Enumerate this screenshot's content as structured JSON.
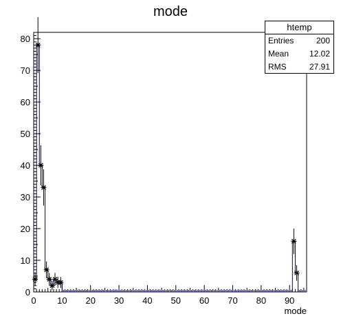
{
  "chart_data": {
    "type": "histogram",
    "title": "mode",
    "xlabel": "mode",
    "ylabel": "",
    "xlim": [
      0,
      96
    ],
    "ylim": [
      0,
      82
    ],
    "x_ticks": [
      0,
      10,
      20,
      30,
      40,
      50,
      60,
      70,
      80,
      90
    ],
    "y_ticks": [
      0,
      10,
      20,
      30,
      40,
      50,
      60,
      70,
      80
    ],
    "bin_width": 1,
    "bins": [
      {
        "x": 0,
        "value": 4
      },
      {
        "x": 1,
        "value": 78
      },
      {
        "x": 2,
        "value": 40
      },
      {
        "x": 3,
        "value": 33
      },
      {
        "x": 4,
        "value": 7
      },
      {
        "x": 5,
        "value": 4
      },
      {
        "x": 6,
        "value": 2
      },
      {
        "x": 7,
        "value": 4
      },
      {
        "x": 8,
        "value": 3
      },
      {
        "x": 9,
        "value": 3
      },
      {
        "x": 91,
        "value": 16
      },
      {
        "x": 92,
        "value": 6
      }
    ],
    "line_color": "#000080",
    "marker": "asterisk",
    "grid": false,
    "legend": "none"
  },
  "stats": {
    "title": "htemp",
    "rows": [
      {
        "label": "Entries",
        "value": "200"
      },
      {
        "label": "Mean",
        "value": "12.02"
      },
      {
        "label": "RMS",
        "value": "27.91"
      }
    ]
  }
}
